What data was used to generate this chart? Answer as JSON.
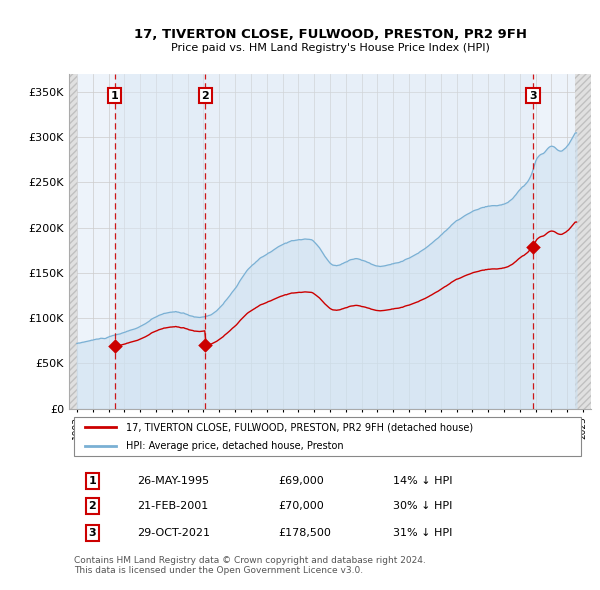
{
  "title1": "17, TIVERTON CLOSE, FULWOOD, PRESTON, PR2 9FH",
  "title2": "Price paid vs. HM Land Registry's House Price Index (HPI)",
  "ylim": [
    0,
    370000
  ],
  "yticks": [
    0,
    50000,
    100000,
    150000,
    200000,
    250000,
    300000,
    350000
  ],
  "ytick_labels": [
    "£0",
    "£50K",
    "£100K",
    "£150K",
    "£200K",
    "£250K",
    "£300K",
    "£350K"
  ],
  "xlim_start": 1992.5,
  "xlim_end": 2025.5,
  "sale_dates": [
    1995.38,
    2001.12,
    2021.83
  ],
  "sale_prices": [
    69000,
    70000,
    178500
  ],
  "sale_labels": [
    "1",
    "2",
    "3"
  ],
  "property_line_color": "#cc0000",
  "hpi_line_color": "#7ab0d4",
  "hpi_fill_color": "#cce0f0",
  "sale_marker_color": "#cc0000",
  "sale_marker_box_color": "#cc0000",
  "dashed_line_color": "#cc0000",
  "legend_label_property": "17, TIVERTON CLOSE, FULWOOD, PRESTON, PR2 9FH (detached house)",
  "legend_label_hpi": "HPI: Average price, detached house, Preston",
  "table_entries": [
    {
      "num": "1",
      "date": "26-MAY-1995",
      "price": "£69,000",
      "hpi": "14% ↓ HPI"
    },
    {
      "num": "2",
      "date": "21-FEB-2001",
      "price": "£70,000",
      "hpi": "30% ↓ HPI"
    },
    {
      "num": "3",
      "date": "29-OCT-2021",
      "price": "£178,500",
      "hpi": "31% ↓ HPI"
    }
  ],
  "footnote": "Contains HM Land Registry data © Crown copyright and database right 2024.\nThis data is licensed under the Open Government Licence v3.0.",
  "xtick_years": [
    1993,
    1994,
    1995,
    1996,
    1997,
    1998,
    1999,
    2000,
    2001,
    2002,
    2003,
    2004,
    2005,
    2006,
    2007,
    2008,
    2009,
    2010,
    2011,
    2012,
    2013,
    2014,
    2015,
    2016,
    2017,
    2018,
    2019,
    2020,
    2021,
    2022,
    2023,
    2024,
    2025
  ]
}
